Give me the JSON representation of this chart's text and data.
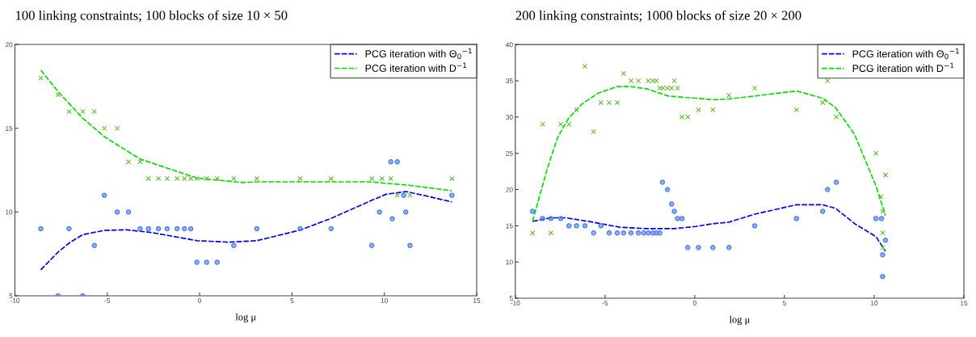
{
  "chart_data": [
    {
      "type": "scatter",
      "title": "100 linking constraints; 100 blocks of size 10 × 50",
      "xlabel": "log μ",
      "xlim": [
        -10,
        15
      ],
      "xticks": [
        -10,
        -5,
        0,
        5,
        10,
        15
      ],
      "ylim": [
        5,
        20
      ],
      "yticks": [
        5,
        10,
        15,
        20
      ],
      "grid": false,
      "legend": "top right",
      "series": [
        {
          "marker": "circle",
          "color": "#4a7cf0",
          "x": [
            -8.6,
            -7.67,
            -7.07,
            -6.33,
            -5.7,
            -5.16,
            -4.46,
            -3.85,
            -3.22,
            -2.77,
            -2.23,
            -1.76,
            -1.22,
            -0.82,
            -0.48,
            -0.15,
            0.38,
            0.95,
            1.85,
            3.1,
            5.44,
            7.12,
            9.32,
            9.74,
            10.35,
            10.7,
            10.43,
            11.05,
            11.16,
            11.39,
            13.66
          ],
          "values": [
            9,
            5,
            9,
            5,
            8,
            11,
            10,
            10,
            9,
            9,
            9,
            9,
            9,
            9,
            9,
            7,
            7,
            7,
            8,
            9,
            9,
            9,
            8,
            10,
            13,
            13,
            9.6,
            11,
            10,
            8,
            11
          ]
        },
        {
          "marker": "cross",
          "color": "#66bb33",
          "x": [
            -8.6,
            -7.67,
            -7.07,
            -6.33,
            -5.7,
            -5.16,
            -4.46,
            -3.85,
            -3.22,
            -2.77,
            -2.23,
            -1.76,
            -1.22,
            -0.82,
            -0.48,
            -0.15,
            0.38,
            0.95,
            1.85,
            3.1,
            5.44,
            7.12,
            9.32,
            9.88,
            10.35,
            10.7,
            11.39,
            13.66
          ],
          "values": [
            18,
            17,
            16,
            16,
            16,
            15,
            15,
            13,
            13,
            12,
            12,
            12,
            12,
            12,
            12,
            12,
            12,
            12,
            12,
            12,
            12,
            12,
            12,
            12,
            12,
            11,
            11,
            12
          ]
        },
        {
          "type": "line",
          "name": "PCG iteration with Θ$_{0}$$^{−1}$",
          "line_style": "dashed",
          "color": "#0000ee",
          "x": [
            -8.6,
            -7.67,
            -7.0,
            -6.33,
            -5.16,
            -3.95,
            -2.64,
            -1.33,
            -0.15,
            1.59,
            3.1,
            5.44,
            7.12,
            9.32,
            10.1,
            11.16,
            12.2,
            13.66
          ],
          "values": [
            6.55,
            7.6,
            8.2,
            8.65,
            8.9,
            8.94,
            8.78,
            8.53,
            8.29,
            8.2,
            8.29,
            8.92,
            9.62,
            10.7,
            11.06,
            11.22,
            10.98,
            10.6
          ]
        },
        {
          "type": "line",
          "name": "PCG iteration with D$^{−1}$",
          "line_style": "dashed",
          "color": "#00dd00",
          "x": [
            -8.6,
            -7.67,
            -6.33,
            -5.16,
            -3.22,
            -0.15,
            2.3,
            3.1,
            5.44,
            9.2,
            11.3,
            13.66
          ],
          "values": [
            18.47,
            17.2,
            15.6,
            14.5,
            13.16,
            12.03,
            11.76,
            11.8,
            11.8,
            11.8,
            11.6,
            11.27
          ]
        }
      ]
    },
    {
      "type": "scatter",
      "title": "200 linking constraints; 1000 blocks of size 20 × 200",
      "xlabel": "log μ",
      "xlim": [
        -10,
        15
      ],
      "xticks": [
        -10,
        -5,
        0,
        5,
        10,
        15
      ],
      "ylim": [
        5,
        40
      ],
      "yticks": [
        5,
        10,
        15,
        20,
        25,
        30,
        35,
        40
      ],
      "grid": false,
      "legend": "top right",
      "series": [
        {
          "marker": "circle",
          "color": "#4a7cf0",
          "x": [
            -9.04,
            -8.48,
            -8.02,
            -7.47,
            -7.01,
            -6.59,
            -6.12,
            -5.64,
            -5.23,
            -4.77,
            -4.32,
            -3.97,
            -3.55,
            -3.14,
            -2.84,
            -2.59,
            -2.33,
            -2.14,
            -1.95,
            -1.8,
            -1.52,
            -1.29,
            -1.14,
            -0.96,
            -0.71,
            -0.39,
            0.21,
            1.01,
            1.91,
            3.34,
            5.67,
            7.13,
            7.4,
            7.89,
            10.1,
            10.41,
            10.63,
            10.47,
            10.47
          ],
          "values": [
            17,
            16,
            16,
            16,
            15,
            15,
            15,
            14,
            15,
            14,
            14,
            14,
            14,
            14,
            14,
            14,
            14,
            14,
            14,
            21,
            20,
            18,
            17,
            16,
            16,
            12,
            12,
            12,
            12,
            15,
            16,
            17,
            20,
            21,
            16,
            16,
            13,
            11,
            8
          ]
        },
        {
          "marker": "cross",
          "color": "#66bb33",
          "x": [
            -9.04,
            -8.48,
            -8.02,
            -7.47,
            -7.01,
            -6.59,
            -6.12,
            -5.64,
            -5.23,
            -4.77,
            -4.32,
            -3.97,
            -3.55,
            -3.14,
            -2.59,
            -2.33,
            -2.14,
            -1.95,
            -1.77,
            -1.52,
            -1.29,
            -1.14,
            -0.96,
            -0.71,
            -0.39,
            0.21,
            1.01,
            1.91,
            3.34,
            5.67,
            7.13,
            7.4,
            7.89,
            10.1,
            10.37,
            10.47,
            10.48,
            10.48,
            10.63
          ],
          "values": [
            14,
            29,
            14,
            29,
            29,
            31,
            37,
            28,
            32,
            32,
            32,
            36,
            35,
            35,
            35,
            35,
            35,
            34,
            34,
            34,
            34,
            35,
            34,
            30,
            30,
            31,
            31,
            33,
            34,
            31,
            32,
            35,
            30,
            25,
            19,
            17,
            14,
            12,
            22
          ]
        },
        {
          "type": "line",
          "name": "PCG iteration with Θ$_{0}$$^{−1}$",
          "line_style": "dashed",
          "color": "#0000ee",
          "x": [
            -9.04,
            -8.02,
            -7.19,
            -5.68,
            -4.18,
            -2.68,
            -1.17,
            0.03,
            1.08,
            1.91,
            3.34,
            5.67,
            7.13,
            7.85,
            8.91,
            10.1,
            10.63
          ],
          "values": [
            15.6,
            16.1,
            16.1,
            15.5,
            14.8,
            14.6,
            14.6,
            14.9,
            15.3,
            15.5,
            16.6,
            17.9,
            17.9,
            17.4,
            15.3,
            13.5,
            11.5
          ]
        },
        {
          "type": "line",
          "name": "PCG iteration with D$^{−1}$",
          "line_style": "dashed",
          "color": "#00dd00",
          "x": [
            -9.04,
            -8.69,
            -8.24,
            -7.64,
            -7.04,
            -6.29,
            -5.38,
            -4.33,
            -3.58,
            -2.68,
            -1.47,
            0.03,
            1.08,
            1.91,
            3.34,
            5.67,
            7.13,
            7.85,
            8.91,
            10.1,
            10.63
          ],
          "values": [
            15.6,
            18.7,
            22.7,
            27.2,
            29.8,
            31.8,
            33.3,
            34.2,
            34.2,
            33.9,
            32.9,
            32.6,
            32.4,
            32.5,
            32.9,
            33.6,
            32.6,
            31.3,
            27.6,
            20.5,
            16.4
          ]
        }
      ]
    }
  ]
}
